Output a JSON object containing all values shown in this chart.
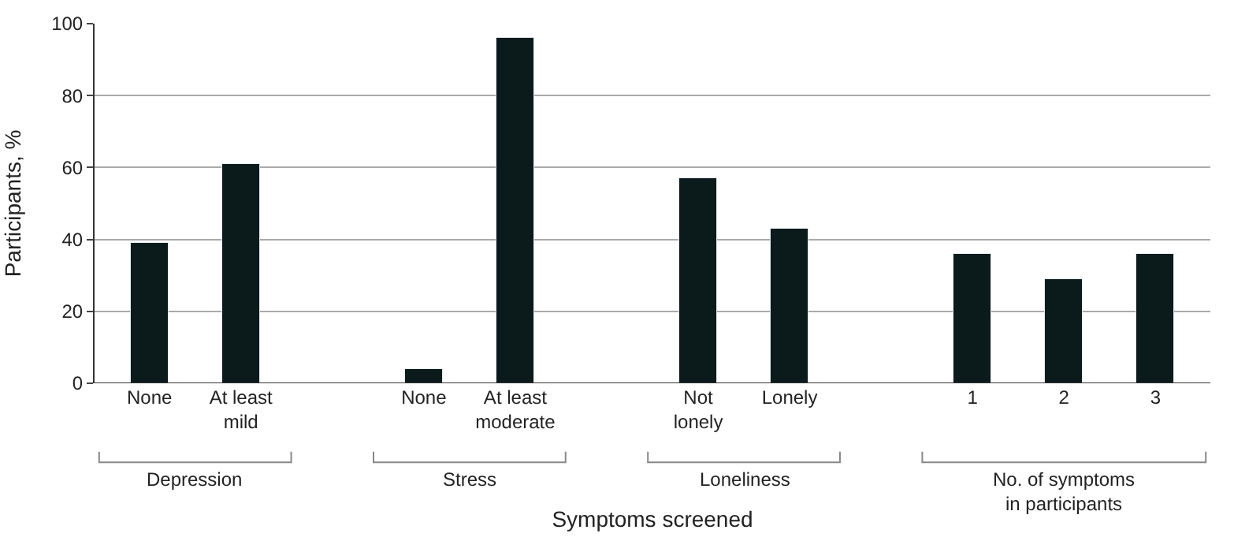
{
  "chart_data": {
    "type": "bar",
    "categories": [
      "None",
      "At least mild",
      null,
      "None",
      "At least moderate",
      null,
      "Not lonely",
      "Lonely",
      null,
      "1",
      "2",
      "3"
    ],
    "values": [
      39,
      61,
      null,
      4,
      96,
      null,
      57,
      43,
      null,
      36,
      29,
      36
    ],
    "color": "#0b1a1a",
    "xlabel": "Symptoms screened",
    "ylabel": "Participants, %",
    "ylim": [
      0,
      100
    ],
    "yticks": [
      0,
      20,
      40,
      60,
      80,
      100
    ],
    "grid": "y",
    "legend": false,
    "annotations": [
      "Depression",
      "Stress",
      "Loneliness",
      "No. of symptoms in participants"
    ]
  }
}
